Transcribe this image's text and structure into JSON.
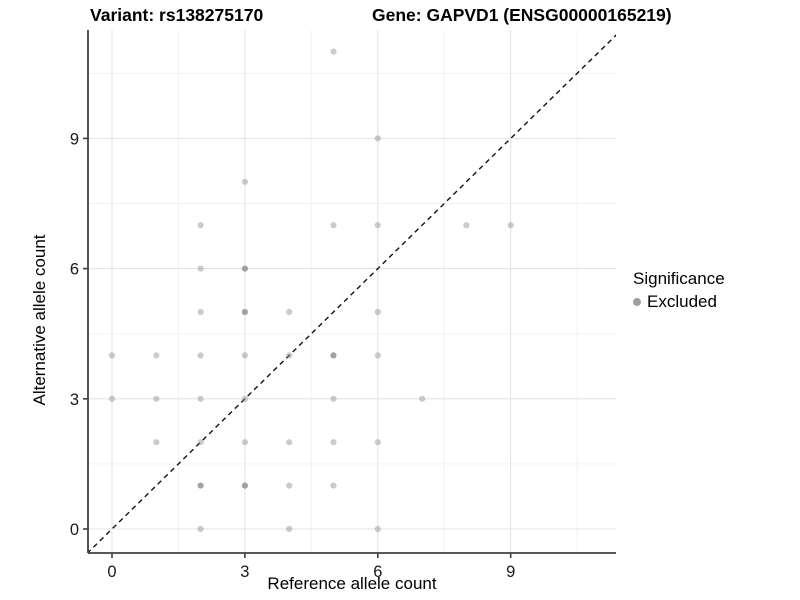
{
  "title": {
    "variant": "Variant: rs138275170",
    "gene": "Gene: GAPVD1 (ENSG00000165219)"
  },
  "axes": {
    "x": {
      "label": "Reference allele count",
      "ticks": [
        0,
        3,
        6,
        9
      ]
    },
    "y": {
      "label": "Alternative allele count",
      "ticks": [
        0,
        3,
        6,
        9
      ]
    }
  },
  "legend": {
    "title": "Significance",
    "items": [
      {
        "label": "Excluded",
        "marker": "dot",
        "color": "#a0a0a0"
      }
    ]
  },
  "colors": {
    "point": "#8c8c8c",
    "grid_major": "#e4e4e4",
    "grid_minor": "#f1f1f1",
    "axis_line": "#404040",
    "tick_text": "#1a1a1a",
    "identity_line": "#111111"
  },
  "chart_data": {
    "type": "scatter",
    "title": "Variant: rs138275170   Gene: GAPVD1 (ENSG00000165219)",
    "xlabel": "Reference allele count",
    "ylabel": "Alternative allele count",
    "xlim": [
      -0.55,
      11.4
    ],
    "ylim": [
      -0.55,
      11.55
    ],
    "x_ticks": [
      0,
      3,
      6,
      9
    ],
    "y_ticks": [
      0,
      3,
      6,
      9
    ],
    "grid": "major and minor (minor at 1.5-unit midpoints), light gray, on white panel",
    "legend_position": "right",
    "identity_line": {
      "type": "y=x",
      "style": "dashed",
      "color": "#111111"
    },
    "series": [
      {
        "name": "Excluded",
        "marker": "circle",
        "color": "#8c8c8c",
        "points": [
          [
            2,
            0
          ],
          [
            4,
            0
          ],
          [
            6,
            0
          ],
          [
            2,
            1
          ],
          [
            3,
            1
          ],
          [
            4,
            1
          ],
          [
            5,
            1
          ],
          [
            1,
            2
          ],
          [
            2,
            2
          ],
          [
            3,
            2
          ],
          [
            4,
            2
          ],
          [
            5,
            2
          ],
          [
            6,
            2
          ],
          [
            0,
            3
          ],
          [
            1,
            3
          ],
          [
            2,
            3
          ],
          [
            3,
            3
          ],
          [
            5,
            3
          ],
          [
            7,
            3
          ],
          [
            0,
            4
          ],
          [
            1,
            4
          ],
          [
            2,
            4
          ],
          [
            3,
            4
          ],
          [
            4,
            4
          ],
          [
            5,
            4
          ],
          [
            6,
            4
          ],
          [
            2,
            5
          ],
          [
            3,
            5
          ],
          [
            4,
            5
          ],
          [
            6,
            5
          ],
          [
            2,
            6
          ],
          [
            3,
            6
          ],
          [
            2,
            7
          ],
          [
            5,
            7
          ],
          [
            6,
            7
          ],
          [
            8,
            7
          ],
          [
            9,
            7
          ],
          [
            3,
            8
          ],
          [
            6,
            9
          ],
          [
            5,
            11
          ]
        ]
      }
    ],
    "overplotted_points": [
      [
        2,
        1
      ],
      [
        3,
        1
      ],
      [
        3,
        5
      ],
      [
        3,
        6
      ],
      [
        5,
        4
      ]
    ]
  }
}
